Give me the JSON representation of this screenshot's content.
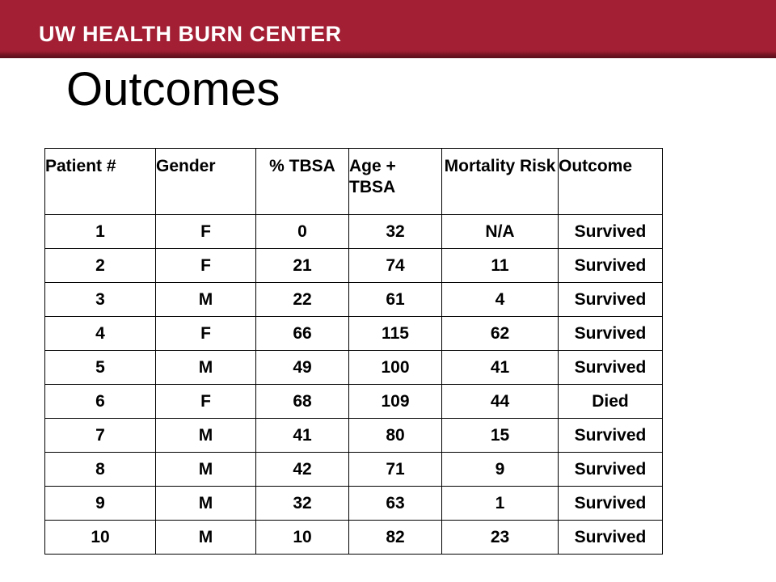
{
  "header": {
    "brand": "UW HEALTH BURN CENTER"
  },
  "title": "Outcomes",
  "table": {
    "columns": [
      "Patient #",
      "Gender",
      "% TBSA",
      "Age + TBSA",
      "Mortality Risk",
      "Outcome"
    ],
    "rows": [
      [
        "1",
        "F",
        "0",
        "32",
        "N/A",
        "Survived"
      ],
      [
        "2",
        "F",
        "21",
        "74",
        "11",
        "Survived"
      ],
      [
        "3",
        "M",
        "22",
        "61",
        "4",
        "Survived"
      ],
      [
        "4",
        "F",
        "66",
        "115",
        "62",
        "Survived"
      ],
      [
        "5",
        "M",
        "49",
        "100",
        "41",
        "Survived"
      ],
      [
        "6",
        "F",
        "68",
        "109",
        "44",
        "Died"
      ],
      [
        "7",
        "M",
        "41",
        "80",
        "15",
        "Survived"
      ],
      [
        "8",
        "M",
        "42",
        "71",
        "9",
        "Survived"
      ],
      [
        "9",
        "M",
        "32",
        "63",
        "1",
        "Survived"
      ],
      [
        "10",
        "M",
        "10",
        "82",
        "23",
        "Survived"
      ]
    ]
  },
  "colors": {
    "header_band": "#a31f34",
    "header_text": "#ffffff",
    "title_text": "#000000",
    "table_border": "#000000"
  }
}
